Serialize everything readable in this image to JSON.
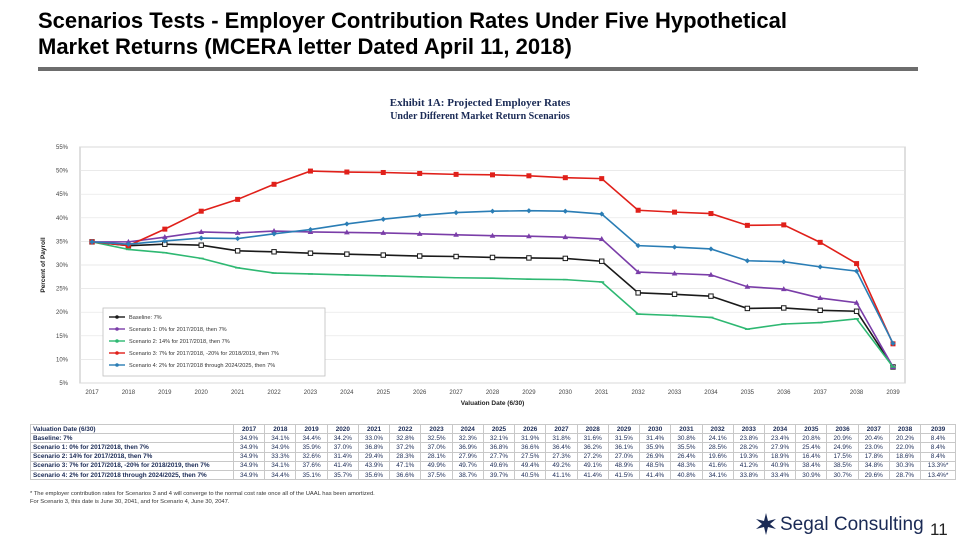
{
  "slide": {
    "title_line1": "Scenarios Tests - Employer Contribution Rates Under Five Hypothetical",
    "title_line2": "Market Returns (MCERA letter Dated April 11, 2018)",
    "page_number": "11",
    "logo_text": "Segal Consulting",
    "footnote_line1": "* The employer contribution rates for Scenarios 3 and 4 will converge to the normal cost rate once all of the UAAL has been amortized.",
    "footnote_line2": "For Scenario 3, this date is June 30, 2041, and for Scenario 4, June 30, 2047."
  },
  "colors": {
    "baseline": "#1a1a1a",
    "scenario1": "#7a3da8",
    "scenario2": "#2eb872",
    "scenario3": "#e0201a",
    "scenario4": "#2a7db5"
  },
  "chart_data": {
    "type": "line",
    "title": "Exhibit 1A: Projected Employer Rates",
    "subtitle": "Under Different Market Return Scenarios",
    "xlabel": "Valuation Date (6/30)",
    "ylabel": "Percent of Payroll",
    "ylim": [
      5,
      55
    ],
    "yticks": [
      "5%",
      "10%",
      "15%",
      "20%",
      "25%",
      "30%",
      "35%",
      "40%",
      "45%",
      "50%",
      "55%"
    ],
    "categories": [
      "2017",
      "2018",
      "2019",
      "2020",
      "2021",
      "2022",
      "2023",
      "2024",
      "2025",
      "2026",
      "2027",
      "2028",
      "2029",
      "2030",
      "2031",
      "2032",
      "2033",
      "2034",
      "2035",
      "2036",
      "2037",
      "2038",
      "2039"
    ],
    "series": [
      {
        "key": "baseline",
        "name": "Baseline: 7%",
        "values": [
          34.9,
          34.1,
          34.4,
          34.2,
          33.0,
          32.8,
          32.5,
          32.3,
          32.1,
          31.9,
          31.8,
          31.6,
          31.5,
          31.4,
          30.8,
          24.1,
          23.8,
          23.4,
          20.8,
          20.9,
          20.4,
          20.2,
          8.4
        ]
      },
      {
        "key": "scenario1",
        "name": "Scenario 1: 0% for 2017/2018, then 7%",
        "values": [
          34.9,
          34.9,
          35.9,
          37.0,
          36.8,
          37.2,
          37.0,
          36.9,
          36.8,
          36.6,
          36.4,
          36.2,
          36.1,
          35.9,
          35.5,
          28.5,
          28.2,
          27.9,
          25.4,
          24.9,
          23.0,
          22.0,
          8.4
        ]
      },
      {
        "key": "scenario2",
        "name": "Scenario 2: 14% for 2017/2018, then 7%",
        "values": [
          34.9,
          33.3,
          32.6,
          31.4,
          29.4,
          28.3,
          28.1,
          27.9,
          27.7,
          27.5,
          27.3,
          27.2,
          27.0,
          26.9,
          26.4,
          19.6,
          19.3,
          18.9,
          16.4,
          17.5,
          17.8,
          18.6,
          8.4
        ]
      },
      {
        "key": "scenario3",
        "name": "Scenario 3: 7% for 2017/2018, -20% for 2018/2019, then 7%",
        "values": [
          34.9,
          34.1,
          37.6,
          41.4,
          43.9,
          47.1,
          49.9,
          49.7,
          49.6,
          49.4,
          49.2,
          49.1,
          48.9,
          48.5,
          48.3,
          41.6,
          41.2,
          40.9,
          38.4,
          38.5,
          34.8,
          30.3,
          13.3
        ]
      },
      {
        "key": "scenario4",
        "name": "Scenario 4: 2% for 2017/2018 through 2024/2025, then 7%",
        "values": [
          34.9,
          34.4,
          35.1,
          35.7,
          35.6,
          36.6,
          37.5,
          38.7,
          39.7,
          40.5,
          41.1,
          41.4,
          41.5,
          41.4,
          40.8,
          34.1,
          33.8,
          33.4,
          30.9,
          30.7,
          29.6,
          28.7,
          13.4
        ]
      }
    ]
  },
  "table": {
    "header": {
      "label": "Valuation Date (6/30)",
      "years": [
        "2017",
        "2018",
        "2019",
        "2020",
        "2021",
        "2022",
        "2023",
        "2024",
        "2025",
        "2026",
        "2027",
        "2028",
        "2029",
        "2030",
        "2031",
        "2032",
        "2033",
        "2034",
        "2035",
        "2036",
        "2037",
        "2038",
        "2039"
      ]
    },
    "rows": [
      {
        "label": "Baseline: 7%",
        "cells": [
          "34.9%",
          "34.1%",
          "34.4%",
          "34.2%",
          "33.0%",
          "32.8%",
          "32.5%",
          "32.3%",
          "32.1%",
          "31.9%",
          "31.8%",
          "31.6%",
          "31.5%",
          "31.4%",
          "30.8%",
          "24.1%",
          "23.8%",
          "23.4%",
          "20.8%",
          "20.9%",
          "20.4%",
          "20.2%",
          "8.4%"
        ]
      },
      {
        "label": "Scenario 1: 0% for 2017/2018, then 7%",
        "cells": [
          "34.9%",
          "34.9%",
          "35.9%",
          "37.0%",
          "36.8%",
          "37.2%",
          "37.0%",
          "36.9%",
          "36.8%",
          "36.6%",
          "36.4%",
          "36.2%",
          "36.1%",
          "35.9%",
          "35.5%",
          "28.5%",
          "28.2%",
          "27.9%",
          "25.4%",
          "24.9%",
          "23.0%",
          "22.0%",
          "8.4%"
        ]
      },
      {
        "label": "Scenario 2: 14% for 2017/2018, then 7%",
        "cells": [
          "34.9%",
          "33.3%",
          "32.6%",
          "31.4%",
          "29.4%",
          "28.3%",
          "28.1%",
          "27.9%",
          "27.7%",
          "27.5%",
          "27.3%",
          "27.2%",
          "27.0%",
          "26.9%",
          "26.4%",
          "19.6%",
          "19.3%",
          "18.9%",
          "16.4%",
          "17.5%",
          "17.8%",
          "18.6%",
          "8.4%"
        ]
      },
      {
        "label": "Scenario 3: 7% for 2017/2018, -20% for 2018/2019, then 7%",
        "cells": [
          "34.9%",
          "34.1%",
          "37.6%",
          "41.4%",
          "43.9%",
          "47.1%",
          "49.9%",
          "49.7%",
          "49.6%",
          "49.4%",
          "49.2%",
          "49.1%",
          "48.9%",
          "48.5%",
          "48.3%",
          "41.6%",
          "41.2%",
          "40.9%",
          "38.4%",
          "38.5%",
          "34.8%",
          "30.3%",
          "13.3%*"
        ]
      },
      {
        "label": "Scenario 4: 2% for 2017/2018 through 2024/2025, then 7%",
        "cells": [
          "34.9%",
          "34.4%",
          "35.1%",
          "35.7%",
          "35.6%",
          "36.6%",
          "37.5%",
          "38.7%",
          "39.7%",
          "40.5%",
          "41.1%",
          "41.4%",
          "41.5%",
          "41.4%",
          "40.8%",
          "34.1%",
          "33.8%",
          "33.4%",
          "30.9%",
          "30.7%",
          "29.6%",
          "28.7%",
          "13.4%*"
        ]
      }
    ]
  }
}
